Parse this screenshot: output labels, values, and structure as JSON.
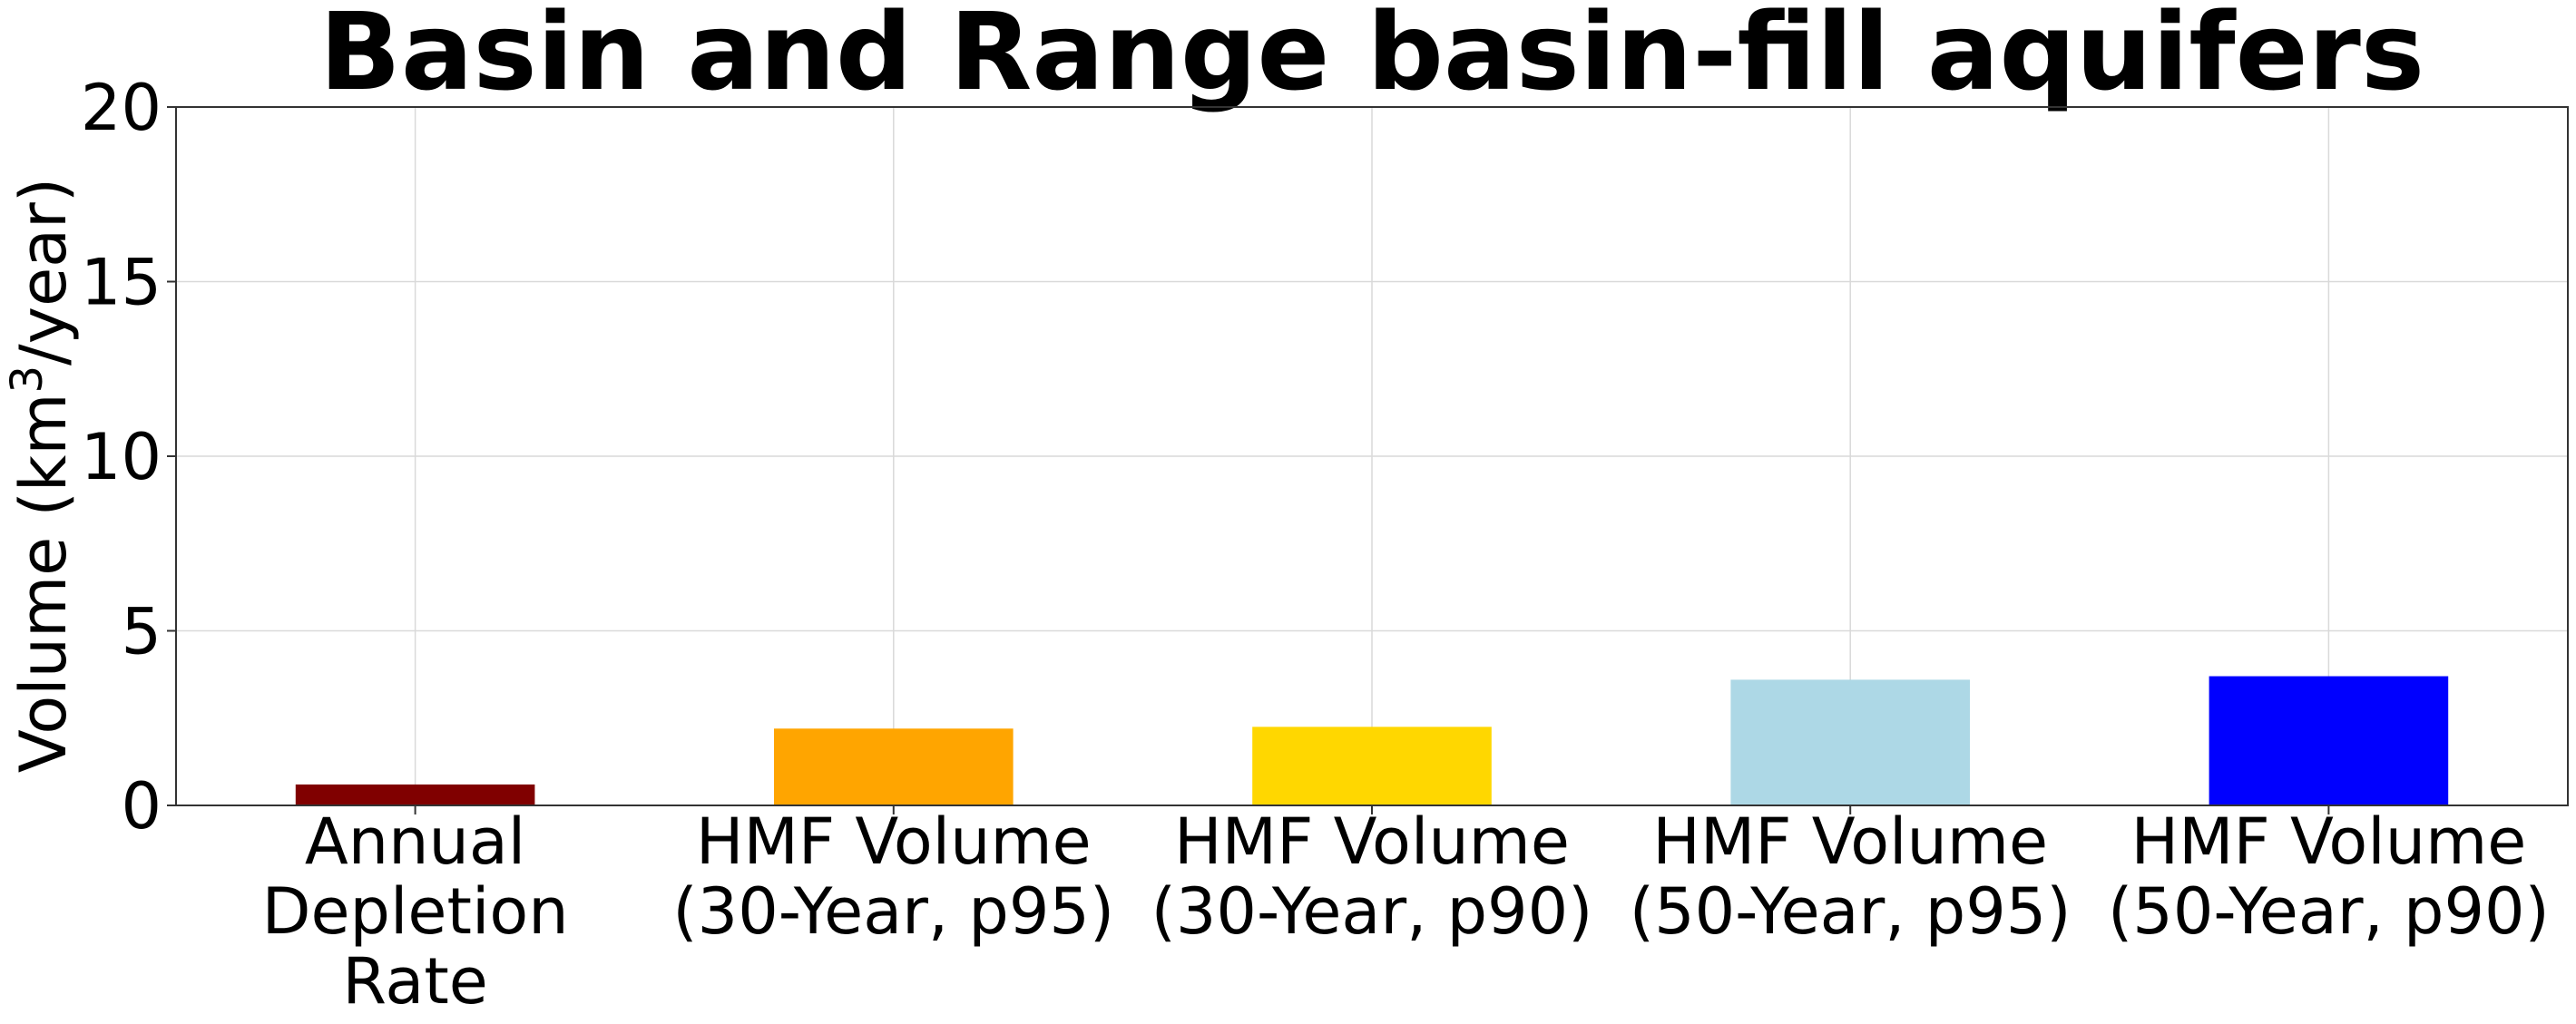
{
  "chart_data": {
    "type": "bar",
    "title": "Basin and Range basin-fill aquifers",
    "ylabel": {
      "prefix": "Volume (km",
      "superscript": "3",
      "suffix": "/year)"
    },
    "xlabel": "",
    "ylim": [
      0,
      20
    ],
    "yticks": [
      0,
      5,
      10,
      15,
      20
    ],
    "grid": true,
    "categories": [
      [
        "Annual",
        "Depletion",
        "Rate"
      ],
      [
        "HMF Volume",
        "(30-Year, p95)"
      ],
      [
        "HMF Volume",
        "(30-Year, p90)"
      ],
      [
        "HMF Volume",
        "(50-Year, p95)"
      ],
      [
        "HMF Volume",
        "(50-Year, p90)"
      ]
    ],
    "values": [
      0.6,
      2.2,
      2.25,
      3.6,
      3.7
    ],
    "colors": [
      "#800000",
      "#ffa500",
      "#ffd700",
      "#add8e6",
      "#0000ff"
    ]
  }
}
